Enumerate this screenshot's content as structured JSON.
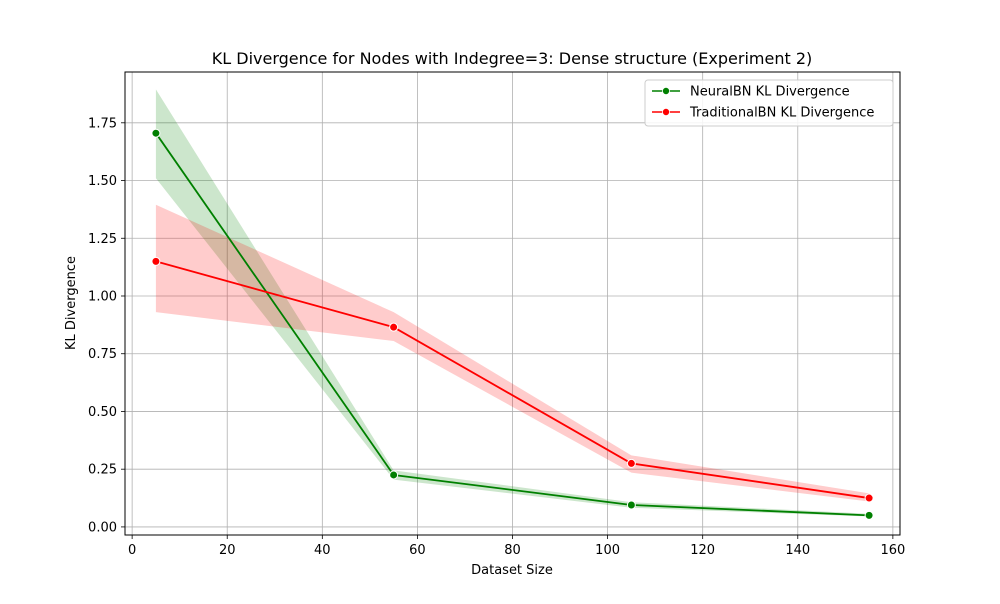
{
  "chart_data": {
    "type": "line",
    "title": "KL Divergence for Nodes with Indegree=3: Dense structure (Experiment 2)",
    "xlabel": "Dataset Size",
    "ylabel": "KL Divergence",
    "xlim": [
      -1.5,
      161.5
    ],
    "ylim": [
      -0.035,
      1.97
    ],
    "xticks": [
      0,
      20,
      40,
      60,
      80,
      100,
      120,
      140,
      160
    ],
    "xtick_labels": [
      "0",
      "20",
      "40",
      "60",
      "80",
      "100",
      "120",
      "140",
      "160"
    ],
    "yticks": [
      0.0,
      0.25,
      0.5,
      0.75,
      1.0,
      1.25,
      1.5,
      1.75
    ],
    "ytick_labels": [
      "0.00",
      "0.25",
      "0.50",
      "0.75",
      "1.00",
      "1.25",
      "1.50",
      "1.75"
    ],
    "grid": true,
    "legend_position": "upper right",
    "x": [
      5,
      55,
      105,
      155
    ],
    "series": [
      {
        "name": "NeuralBN KL Divergence",
        "color": "#008000",
        "values": [
          1.705,
          0.225,
          0.095,
          0.05
        ],
        "band_lower": [
          1.51,
          0.205,
          0.083,
          0.045
        ],
        "band_upper": [
          1.895,
          0.245,
          0.107,
          0.057
        ]
      },
      {
        "name": "TraditionalBN KL Divergence",
        "color": "#ff0000",
        "values": [
          1.15,
          0.865,
          0.275,
          0.125
        ],
        "band_lower": [
          0.93,
          0.805,
          0.235,
          0.11
        ],
        "band_upper": [
          1.395,
          0.93,
          0.31,
          0.145
        ]
      }
    ]
  }
}
